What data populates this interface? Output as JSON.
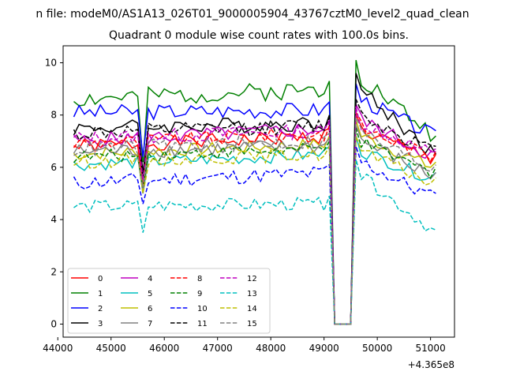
{
  "chart_data": {
    "type": "line",
    "suptitle": "n file: modeM0/AS1A13_026T01_9000005904_43767cztM0_level2_quad_clean",
    "title": "Quadrant 0 module wise count rates with 100.0s bins.",
    "xlabel": "",
    "ylabel": "",
    "x_offset_label": "+4.365e8",
    "xlim": [
      44100,
      51450
    ],
    "ylim": [
      -0.5,
      10.65
    ],
    "xticks": [
      44000,
      45000,
      46000,
      47000,
      48000,
      49000,
      50000,
      51000
    ],
    "xtick_labels": [
      "44000",
      "45000",
      "46000",
      "47000",
      "48000",
      "49000",
      "50000",
      "51000"
    ],
    "yticks": [
      0,
      2,
      4,
      6,
      8,
      10
    ],
    "ytick_labels": [
      "0",
      "2",
      "4",
      "6",
      "8",
      "10"
    ],
    "grid": false,
    "legend_position": "lower-left",
    "x": {
      "start": 44300,
      "step": 100,
      "count": 69
    },
    "gap": {
      "from": 49200,
      "to": 49500
    },
    "series": [
      {
        "name": "0",
        "color": "#ff0000",
        "dash": "solid",
        "level": 6.8,
        "dip": 5.2,
        "end": 6.5,
        "noise": 0.28,
        "peak": 8.0,
        "late_level": 7.2,
        "seed": 1
      },
      {
        "name": "1",
        "color": "#008000",
        "dash": "solid",
        "level": 8.6,
        "dip": 6.2,
        "end": 7.2,
        "noise": 0.35,
        "peak": 10.1,
        "late_level": 9.0,
        "seed": 2
      },
      {
        "name": "2",
        "color": "#0000ff",
        "dash": "solid",
        "level": 8.1,
        "dip": 6.4,
        "end": 7.4,
        "noise": 0.3,
        "peak": 9.2,
        "late_level": 8.2,
        "seed": 3
      },
      {
        "name": "3",
        "color": "#000000",
        "dash": "solid",
        "level": 7.5,
        "dip": 5.8,
        "end": 6.5,
        "noise": 0.3,
        "peak": 9.6,
        "late_level": 7.7,
        "seed": 4
      },
      {
        "name": "4",
        "color": "#bf00bf",
        "dash": "solid",
        "level": 7.0,
        "dip": 5.5,
        "end": 6.6,
        "noise": 0.3,
        "peak": 8.4,
        "late_level": 7.5,
        "seed": 5
      },
      {
        "name": "5",
        "color": "#00bfbf",
        "dash": "solid",
        "level": 6.1,
        "dip": 5.0,
        "end": 5.8,
        "noise": 0.25,
        "peak": 7.2,
        "late_level": 6.5,
        "seed": 6
      },
      {
        "name": "6",
        "color": "#bfbf00",
        "dash": "solid",
        "level": 6.5,
        "dip": 5.3,
        "end": 6.2,
        "noise": 0.25,
        "peak": 7.8,
        "late_level": 6.9,
        "seed": 7
      },
      {
        "name": "7",
        "color": "#808080",
        "dash": "solid",
        "level": 6.6,
        "dip": 5.0,
        "end": 5.8,
        "noise": 0.3,
        "peak": 7.6,
        "late_level": 6.8,
        "seed": 8
      },
      {
        "name": "8",
        "color": "#ff0000",
        "dash": "dashed",
        "level": 6.9,
        "dip": 5.3,
        "end": 6.6,
        "noise": 0.28,
        "peak": 8.1,
        "late_level": 7.3,
        "seed": 9
      },
      {
        "name": "9",
        "color": "#008000",
        "dash": "dashed",
        "level": 6.4,
        "dip": 5.2,
        "end": 6.0,
        "noise": 0.25,
        "peak": 7.5,
        "late_level": 6.7,
        "seed": 10
      },
      {
        "name": "10",
        "color": "#0000ff",
        "dash": "dashed",
        "level": 5.4,
        "dip": 4.6,
        "end": 5.0,
        "noise": 0.3,
        "peak": 6.8,
        "late_level": 5.8,
        "seed": 11
      },
      {
        "name": "11",
        "color": "#000000",
        "dash": "dashed",
        "level": 7.3,
        "dip": 5.6,
        "end": 6.8,
        "noise": 0.3,
        "peak": 8.6,
        "late_level": 7.6,
        "seed": 12
      },
      {
        "name": "12",
        "color": "#bf00bf",
        "dash": "dashed",
        "level": 7.1,
        "dip": 5.5,
        "end": 6.7,
        "noise": 0.28,
        "peak": 8.3,
        "late_level": 7.4,
        "seed": 13
      },
      {
        "name": "13",
        "color": "#00bfbf",
        "dash": "dashed",
        "level": 4.5,
        "dip": 3.5,
        "end": 3.6,
        "noise": 0.25,
        "peak": 6.3,
        "late_level": 4.6,
        "seed": 14
      },
      {
        "name": "14",
        "color": "#bfbf00",
        "dash": "dashed",
        "level": 6.2,
        "dip": 5.0,
        "end": 5.6,
        "noise": 0.25,
        "peak": 7.2,
        "late_level": 6.5,
        "seed": 15
      },
      {
        "name": "15",
        "color": "#808080",
        "dash": "dashed",
        "level": 6.7,
        "dip": 5.2,
        "end": 6.1,
        "noise": 0.3,
        "peak": 7.9,
        "late_level": 7.0,
        "seed": 16
      }
    ]
  }
}
